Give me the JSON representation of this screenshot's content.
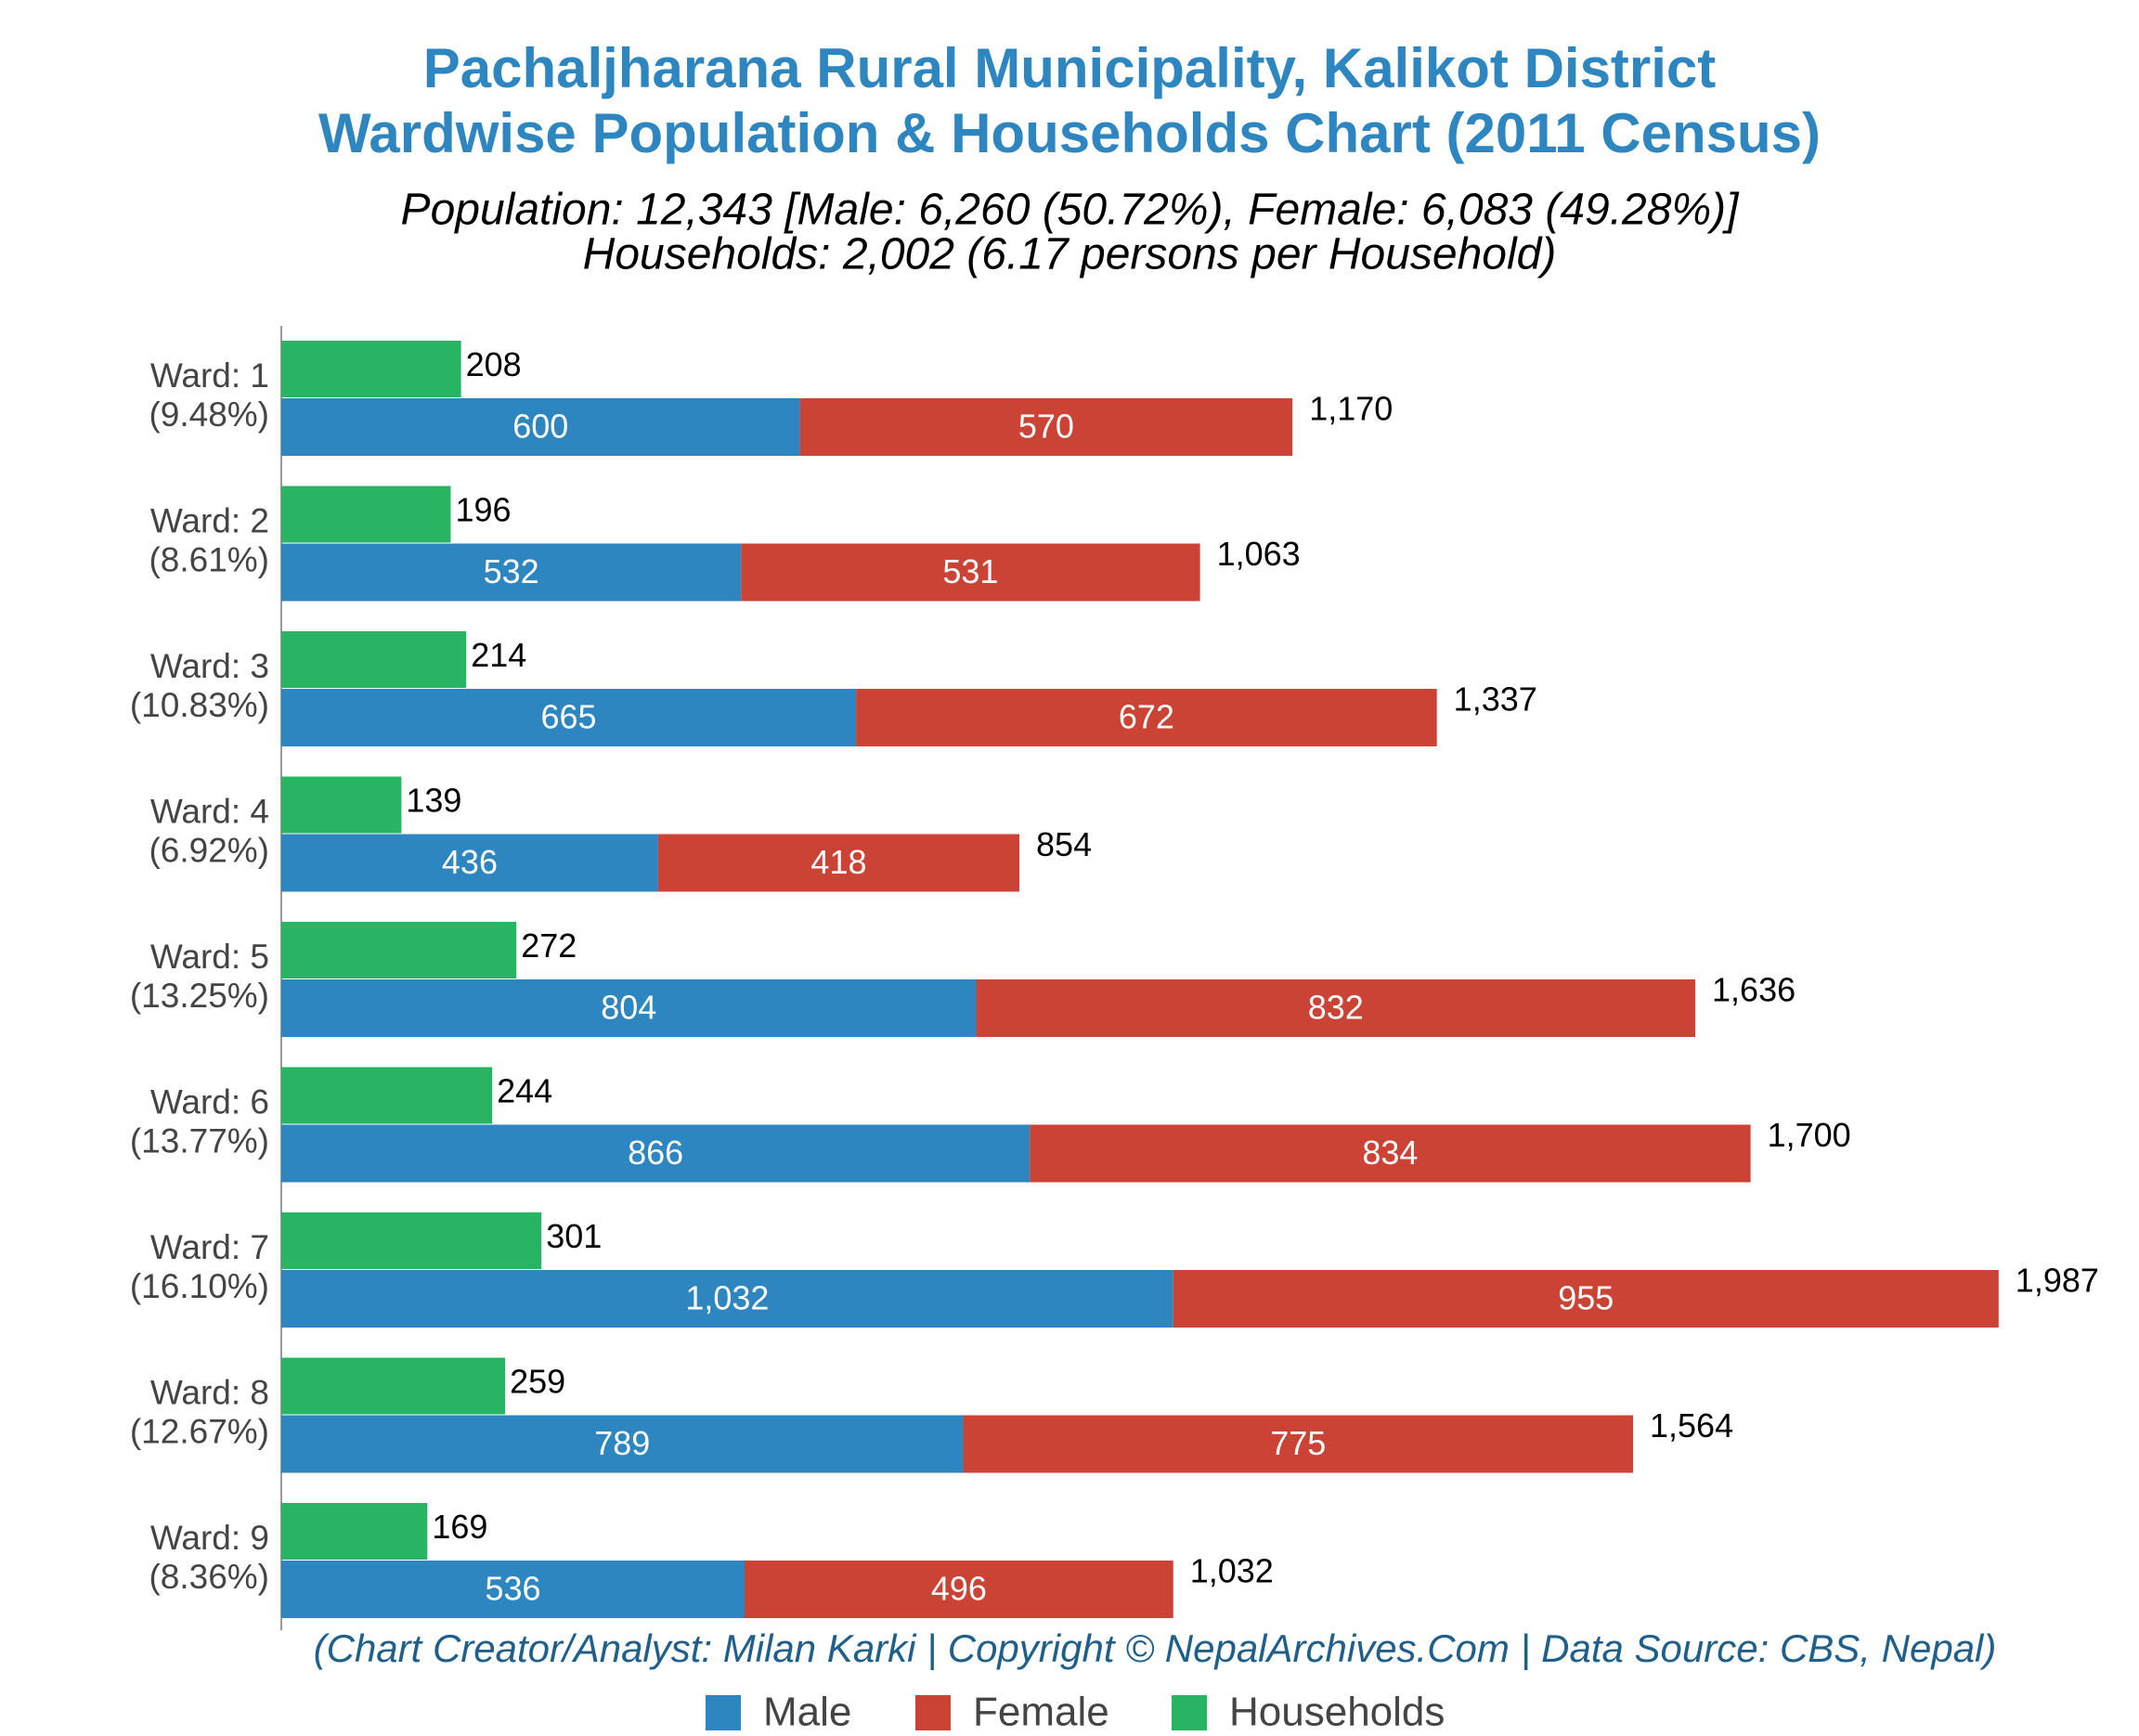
{
  "chart_data": {
    "type": "bar",
    "title": [
      "Pachaljharana Rural Municipality, Kalikot District",
      "Wardwise Population & Households Chart (2011 Census)"
    ],
    "subtitle": [
      "Population: 12,343 [Male: 6,260 (50.72%), Female: 6,083 (49.28%)]",
      "Households: 2,002 (6.17 persons per Household)"
    ],
    "credit": "(Chart Creator/Analyst: Milan Karki | Copyright © NepalArchives.Com | Data Source: CBS, Nepal)",
    "categories": [
      "Ward: 1",
      "Ward: 2",
      "Ward: 3",
      "Ward: 4",
      "Ward: 5",
      "Ward: 6",
      "Ward: 7",
      "Ward: 8",
      "Ward: 9"
    ],
    "category_shares": [
      "(9.48%)",
      "(8.61%)",
      "(10.83%)",
      "(6.92%)",
      "(13.25%)",
      "(13.77%)",
      "(16.10%)",
      "(12.67%)",
      "(8.36%)"
    ],
    "series": [
      {
        "name": "Male",
        "color": "#2e86c1",
        "values": [
          600,
          532,
          665,
          436,
          804,
          866,
          1032,
          789,
          536
        ],
        "value_labels": [
          "600",
          "532",
          "665",
          "436",
          "804",
          "866",
          "1,032",
          "789",
          "536"
        ]
      },
      {
        "name": "Female",
        "color": "#cb4335",
        "values": [
          570,
          531,
          672,
          418,
          832,
          834,
          955,
          775,
          496
        ],
        "value_labels": [
          "570",
          "531",
          "672",
          "418",
          "832",
          "834",
          "955",
          "775",
          "496"
        ]
      },
      {
        "name": "Households",
        "color": "#28b463",
        "values": [
          208,
          196,
          214,
          139,
          272,
          244,
          301,
          259,
          169
        ],
        "value_labels": [
          "208",
          "196",
          "214",
          "139",
          "272",
          "244",
          "301",
          "259",
          "169"
        ]
      }
    ],
    "totals": [
      1170,
      1063,
      1337,
      854,
      1636,
      1700,
      1987,
      1564,
      1032
    ],
    "total_labels": [
      "1,170",
      "1,063",
      "1,337",
      "854",
      "1,636",
      "1,700",
      "1,987",
      "1,564",
      "1,032"
    ],
    "xlim": [
      0,
      2100
    ],
    "legend": "bottom"
  }
}
